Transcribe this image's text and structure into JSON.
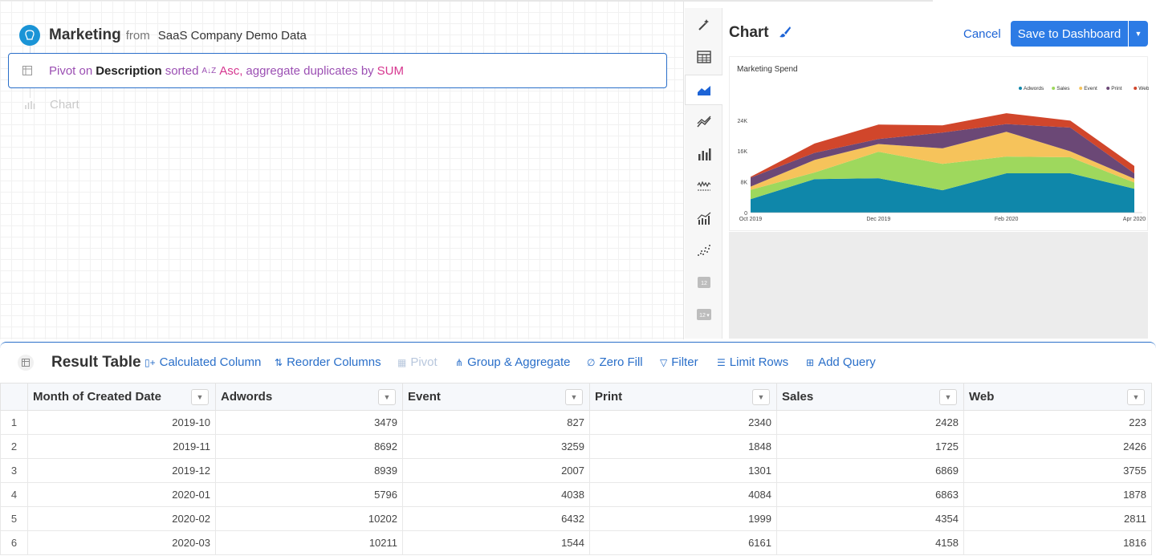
{
  "builder": {
    "source_title": "Marketing",
    "from_word": "from",
    "source_name": "SaaS Company Demo Data",
    "pivot": {
      "pivot_word": "Pivot on",
      "column": "Description",
      "sorted_word": "sorted",
      "sort_dir": "Asc,",
      "agg_text": "aggregate duplicates by",
      "agg_fn": "SUM"
    },
    "chart_step_label": "Chart"
  },
  "panel": {
    "title": "Chart",
    "cancel_label": "Cancel",
    "save_label": "Save to Dashboard"
  },
  "chart_types": [
    "magic-wand",
    "table",
    "area",
    "line",
    "bar",
    "sparkline",
    "bar-line",
    "scatter",
    "single-value",
    "single-value-change"
  ],
  "chart_data": {
    "type": "area",
    "stacked": true,
    "title": "Marketing Spend",
    "x": [
      "2019-10",
      "2019-11",
      "2019-12",
      "2020-01",
      "2020-02",
      "2020-03",
      "2020-04"
    ],
    "x_tick_labels": [
      "Oct 2019",
      "Dec 2019",
      "Feb 2020",
      "Apr 2020"
    ],
    "y_ticks": [
      "0",
      "8K",
      "16K",
      "24K"
    ],
    "ylim": [
      0,
      30000
    ],
    "legend_position": "top-right",
    "series": [
      {
        "name": "Adwords",
        "color": "#0f87aa",
        "values": [
          3479,
          8692,
          8939,
          5796,
          10202,
          10211,
          6200
        ]
      },
      {
        "name": "Sales",
        "color": "#9ed85d",
        "values": [
          2428,
          1725,
          6869,
          6863,
          4354,
          4158,
          1600
        ]
      },
      {
        "name": "Event",
        "color": "#f6c35b",
        "values": [
          827,
          3259,
          2007,
          4038,
          6432,
          1544,
          1000
        ]
      },
      {
        "name": "Print",
        "color": "#6b4876",
        "values": [
          2340,
          1848,
          1301,
          4084,
          1999,
          6161,
          1400
        ]
      },
      {
        "name": "Web",
        "color": "#d1462b",
        "values": [
          223,
          2426,
          3755,
          1878,
          2811,
          1816,
          1900
        ]
      }
    ]
  },
  "results": {
    "title": "Result Table",
    "tools": [
      {
        "label": "Calculated Column",
        "icon": "calc-column-icon",
        "enabled": true
      },
      {
        "label": "Reorder Columns",
        "icon": "reorder-icon",
        "enabled": true
      },
      {
        "label": "Pivot",
        "icon": "pivot-icon",
        "enabled": false
      },
      {
        "label": "Group & Aggregate",
        "icon": "group-icon",
        "enabled": true
      },
      {
        "label": "Zero Fill",
        "icon": "zero-fill-icon",
        "enabled": true
      },
      {
        "label": "Filter",
        "icon": "filter-icon",
        "enabled": true
      },
      {
        "label": "Limit Rows",
        "icon": "limit-rows-icon",
        "enabled": true
      },
      {
        "label": "Add Query",
        "icon": "add-query-icon",
        "enabled": true
      }
    ],
    "columns": [
      "Month of Created Date",
      "Adwords",
      "Event",
      "Print",
      "Sales",
      "Web"
    ],
    "rows": [
      [
        "1",
        "2019-10",
        "3479",
        "827",
        "2340",
        "2428",
        "223"
      ],
      [
        "2",
        "2019-11",
        "8692",
        "3259",
        "1848",
        "1725",
        "2426"
      ],
      [
        "3",
        "2019-12",
        "8939",
        "2007",
        "1301",
        "6869",
        "3755"
      ],
      [
        "4",
        "2020-01",
        "5796",
        "4038",
        "4084",
        "6863",
        "1878"
      ],
      [
        "5",
        "2020-02",
        "10202",
        "6432",
        "1999",
        "4354",
        "2811"
      ],
      [
        "6",
        "2020-03",
        "10211",
        "1544",
        "6161",
        "4158",
        "1816"
      ]
    ]
  }
}
